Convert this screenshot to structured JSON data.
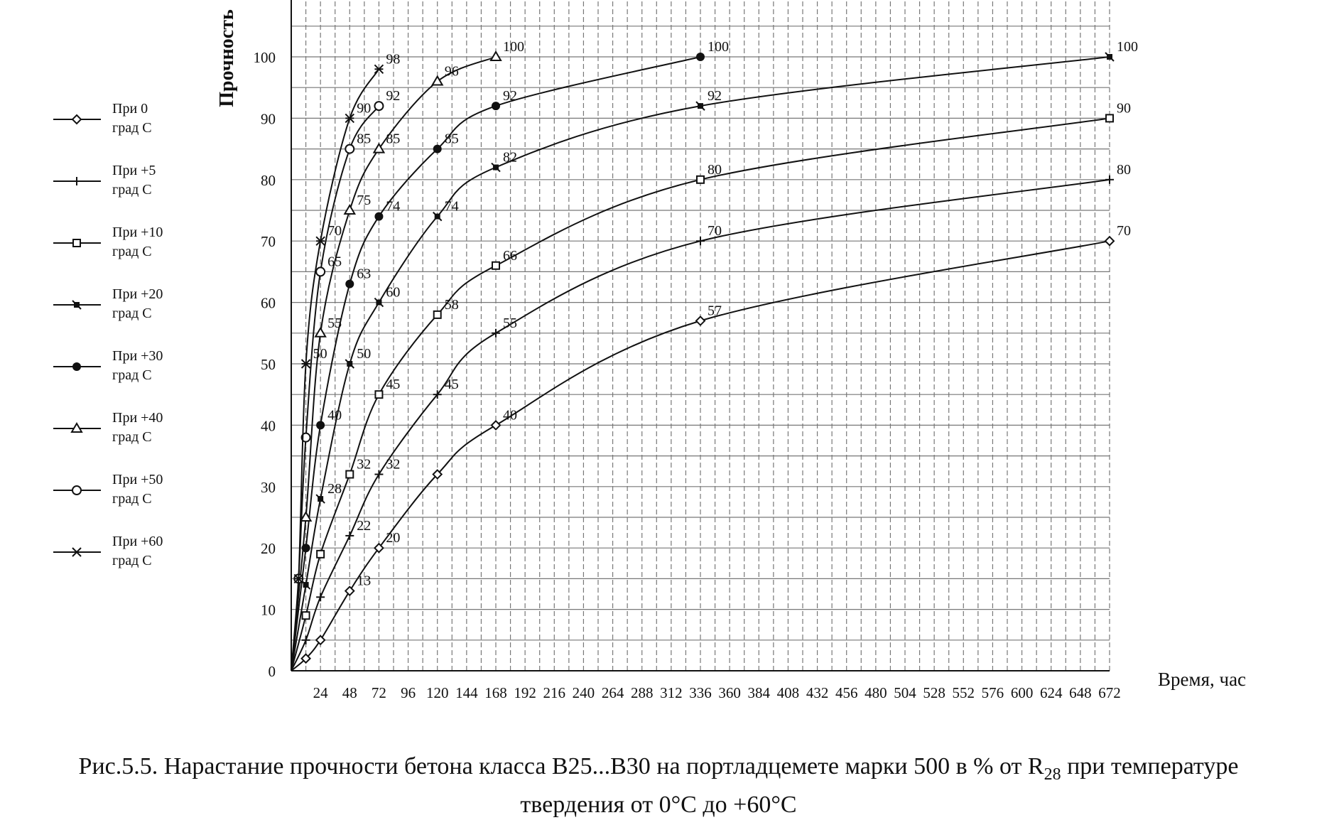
{
  "chart_data": {
    "type": "line",
    "ylabel": "Прочность",
    "xlabel": "Время, час",
    "xlim": [
      0,
      672
    ],
    "ylim": [
      0,
      100
    ],
    "x_ticks": [
      24,
      48,
      72,
      96,
      120,
      144,
      168,
      192,
      216,
      240,
      264,
      288,
      312,
      336,
      360,
      384,
      408,
      432,
      456,
      480,
      504,
      528,
      552,
      576,
      600,
      624,
      648,
      672
    ],
    "y_ticks": [
      0,
      10,
      20,
      30,
      40,
      50,
      60,
      70,
      80,
      90,
      100
    ],
    "grid": true,
    "legend_position": "left",
    "series": [
      {
        "name": "При 0 град С",
        "line1": "При 0",
        "line2": "град С",
        "marker": "open-diamond",
        "points": [
          [
            0,
            0
          ],
          [
            12,
            2
          ],
          [
            24,
            5
          ],
          [
            48,
            13
          ],
          [
            72,
            20
          ],
          [
            120,
            32
          ],
          [
            168,
            40
          ],
          [
            336,
            57
          ],
          [
            672,
            70
          ]
        ],
        "labels": [
          {
            "x": 48,
            "y": 13,
            "text": "13"
          },
          {
            "x": 72,
            "y": 20,
            "text": "20"
          },
          {
            "x": 168,
            "y": 40,
            "text": "40"
          },
          {
            "x": 336,
            "y": 57,
            "text": "57"
          },
          {
            "x": 672,
            "y": 70,
            "text": "70"
          }
        ]
      },
      {
        "name": "При +5 град С",
        "line1": "При +5",
        "line2": "град С",
        "marker": "plus",
        "points": [
          [
            0,
            0
          ],
          [
            12,
            5
          ],
          [
            24,
            12
          ],
          [
            48,
            22
          ],
          [
            72,
            32
          ],
          [
            120,
            45
          ],
          [
            168,
            55
          ],
          [
            336,
            70
          ],
          [
            672,
            80
          ]
        ],
        "labels": [
          {
            "x": 48,
            "y": 22,
            "text": "22"
          },
          {
            "x": 72,
            "y": 32,
            "text": "32"
          },
          {
            "x": 120,
            "y": 45,
            "text": "45"
          },
          {
            "x": 168,
            "y": 55,
            "text": "55"
          },
          {
            "x": 336,
            "y": 70,
            "text": "70"
          },
          {
            "x": 672,
            "y": 80,
            "text": "80"
          }
        ]
      },
      {
        "name": "При +10 град С",
        "line1": "При +10",
        "line2": "град С",
        "marker": "open-square",
        "points": [
          [
            0,
            0
          ],
          [
            12,
            9
          ],
          [
            24,
            19
          ],
          [
            48,
            32
          ],
          [
            72,
            45
          ],
          [
            120,
            58
          ],
          [
            168,
            66
          ],
          [
            336,
            80
          ],
          [
            672,
            90
          ]
        ],
        "labels": [
          {
            "x": 48,
            "y": 32,
            "text": "32"
          },
          {
            "x": 72,
            "y": 45,
            "text": "45"
          },
          {
            "x": 120,
            "y": 58,
            "text": "58"
          },
          {
            "x": 168,
            "y": 66,
            "text": "66"
          },
          {
            "x": 336,
            "y": 80,
            "text": "80"
          },
          {
            "x": 672,
            "y": 90,
            "text": "90"
          }
        ]
      },
      {
        "name": "При +20 град С",
        "line1": "При +20",
        "line2": "град С",
        "marker": "filled-square",
        "points": [
          [
            0,
            0
          ],
          [
            12,
            14
          ],
          [
            24,
            28
          ],
          [
            48,
            50
          ],
          [
            72,
            60
          ],
          [
            120,
            74
          ],
          [
            168,
            82
          ],
          [
            336,
            92
          ],
          [
            672,
            100
          ]
        ],
        "labels": [
          {
            "x": 24,
            "y": 28,
            "text": "28"
          },
          {
            "x": 48,
            "y": 50,
            "text": "50"
          },
          {
            "x": 72,
            "y": 60,
            "text": "60"
          },
          {
            "x": 120,
            "y": 74,
            "text": "74"
          },
          {
            "x": 168,
            "y": 82,
            "text": "82"
          },
          {
            "x": 336,
            "y": 92,
            "text": "92"
          },
          {
            "x": 672,
            "y": 100,
            "text": "100"
          }
        ]
      },
      {
        "name": "При +30 град С",
        "line1": "При +30",
        "line2": "град С",
        "marker": "filled-circle",
        "points": [
          [
            0,
            0
          ],
          [
            12,
            20
          ],
          [
            24,
            40
          ],
          [
            48,
            63
          ],
          [
            72,
            74
          ],
          [
            120,
            85
          ],
          [
            168,
            92
          ],
          [
            336,
            100
          ]
        ],
        "labels": [
          {
            "x": 24,
            "y": 40,
            "text": "40"
          },
          {
            "x": 48,
            "y": 63,
            "text": "63"
          },
          {
            "x": 72,
            "y": 74,
            "text": "74"
          },
          {
            "x": 120,
            "y": 85,
            "text": "85"
          },
          {
            "x": 168,
            "y": 92,
            "text": "92"
          },
          {
            "x": 336,
            "y": 100,
            "text": "100"
          }
        ]
      },
      {
        "name": "При +40 град С",
        "line1": "При +40",
        "line2": "град С",
        "marker": "triangle",
        "points": [
          [
            0,
            0
          ],
          [
            12,
            25
          ],
          [
            24,
            55
          ],
          [
            48,
            75
          ],
          [
            72,
            85
          ],
          [
            120,
            96
          ],
          [
            168,
            100
          ]
        ],
        "labels": [
          {
            "x": 24,
            "y": 55,
            "text": "55"
          },
          {
            "x": 48,
            "y": 75,
            "text": "75"
          },
          {
            "x": 72,
            "y": 85,
            "text": "85"
          },
          {
            "x": 120,
            "y": 96,
            "text": "96"
          },
          {
            "x": 168,
            "y": 100,
            "text": "100"
          }
        ]
      },
      {
        "name": "При +50 град С",
        "line1": "При +50",
        "line2": "град С",
        "marker": "open-circle",
        "points": [
          [
            0,
            0
          ],
          [
            6,
            15
          ],
          [
            12,
            38
          ],
          [
            24,
            65
          ],
          [
            48,
            85
          ],
          [
            72,
            92
          ]
        ],
        "labels": [
          {
            "x": 24,
            "y": 65,
            "text": "65"
          },
          {
            "x": 48,
            "y": 85,
            "text": "85"
          },
          {
            "x": 72,
            "y": 92,
            "text": "92"
          }
        ]
      },
      {
        "name": "При +60 град С",
        "line1": "При +60",
        "line2": "град С",
        "marker": "star",
        "points": [
          [
            0,
            0
          ],
          [
            6,
            15
          ],
          [
            12,
            50
          ],
          [
            24,
            70
          ],
          [
            48,
            90
          ],
          [
            72,
            98
          ]
        ],
        "labels": [
          {
            "x": 12,
            "y": 50,
            "text": "50"
          },
          {
            "x": 24,
            "y": 70,
            "text": "70"
          },
          {
            "x": 48,
            "y": 90,
            "text": "90"
          },
          {
            "x": 72,
            "y": 98,
            "text": "98"
          }
        ]
      }
    ]
  },
  "caption": {
    "line1_before_sub": "Рис.5.5. Нарастание прочности бетона класса В25...В30 на портладцемете марки 500 в  % от R",
    "line1_sub": "28",
    "line1_after_sub": " при температуре",
    "line2": "твердения от 0°С до +60°С"
  }
}
